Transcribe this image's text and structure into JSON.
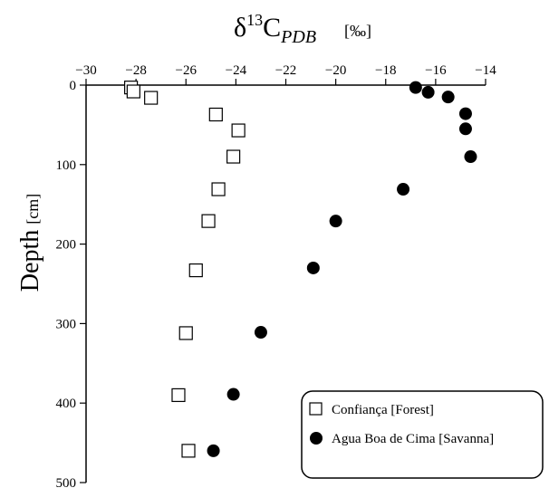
{
  "chart_data": {
    "type": "scatter",
    "title": {
      "delta": "δ",
      "isotope_mass": "13",
      "element": "C",
      "subscript": "PDB",
      "unit": "[‰]"
    },
    "xlabel": "",
    "ylabel": {
      "main": "Depth",
      "unit": "[cm]"
    },
    "x_axis_position": "top",
    "y_inverted": true,
    "xlim": [
      -30,
      -14
    ],
    "ylim": [
      0,
      500
    ],
    "x_ticks": [
      -30,
      -28,
      -26,
      -24,
      -22,
      -20,
      -18,
      -16,
      -14
    ],
    "y_ticks": [
      0,
      100,
      200,
      300,
      400,
      500
    ],
    "grid": false,
    "legend_position": "bottom-right",
    "series": [
      {
        "name": "Confiança [Forest]",
        "marker": "open-square",
        "color": "#000000",
        "points": [
          {
            "x": -28.2,
            "y": 3
          },
          {
            "x": -28.1,
            "y": 8
          },
          {
            "x": -27.4,
            "y": 16
          },
          {
            "x": -24.8,
            "y": 37
          },
          {
            "x": -23.9,
            "y": 57
          },
          {
            "x": -24.1,
            "y": 90
          },
          {
            "x": -24.7,
            "y": 131
          },
          {
            "x": -25.1,
            "y": 171
          },
          {
            "x": -25.6,
            "y": 233
          },
          {
            "x": -26.0,
            "y": 312
          },
          {
            "x": -26.3,
            "y": 390
          },
          {
            "x": -25.9,
            "y": 460
          }
        ]
      },
      {
        "name": "Agua Boa de Cima [Savanna]",
        "marker": "filled-circle",
        "color": "#000000",
        "points": [
          {
            "x": -16.8,
            "y": 3
          },
          {
            "x": -16.3,
            "y": 9
          },
          {
            "x": -15.5,
            "y": 15
          },
          {
            "x": -14.8,
            "y": 36
          },
          {
            "x": -14.8,
            "y": 55
          },
          {
            "x": -14.6,
            "y": 90
          },
          {
            "x": -17.3,
            "y": 131
          },
          {
            "x": -20.0,
            "y": 171
          },
          {
            "x": -20.9,
            "y": 230
          },
          {
            "x": -23.0,
            "y": 311
          },
          {
            "x": -24.1,
            "y": 389
          },
          {
            "x": -24.9,
            "y": 460
          }
        ]
      }
    ]
  }
}
